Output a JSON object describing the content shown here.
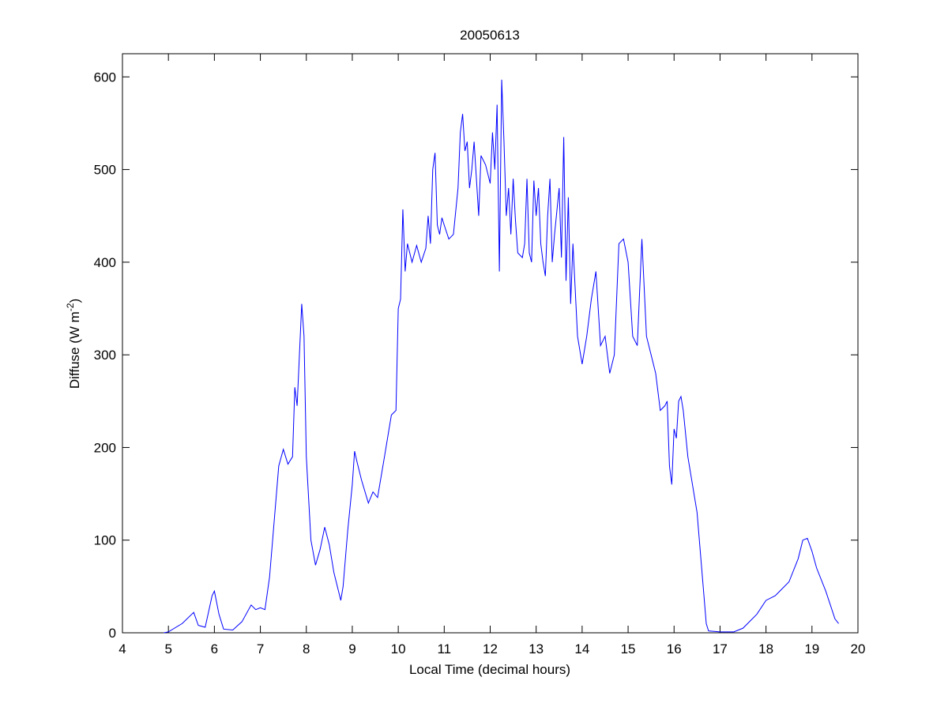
{
  "chart_data": {
    "type": "line",
    "title": "20050613",
    "x_label": "Local Time (decimal hours)",
    "y_label": [
      "Diffuse (W m",
      "-2",
      ")"
    ],
    "xlim": [
      4,
      20
    ],
    "xticks": [
      4,
      5,
      6,
      7,
      8,
      9,
      10,
      11,
      12,
      13,
      14,
      15,
      16,
      17,
      18,
      19,
      20
    ],
    "ylim": [
      0,
      625
    ],
    "yticks": [
      0,
      100,
      200,
      300,
      400,
      500,
      600
    ],
    "grid": false,
    "x": [
      4.9,
      5.0,
      5.3,
      5.55,
      5.65,
      5.8,
      5.95,
      6.0,
      6.1,
      6.2,
      6.4,
      6.6,
      6.8,
      6.9,
      7.0,
      7.1,
      7.2,
      7.3,
      7.4,
      7.5,
      7.6,
      7.7,
      7.75,
      7.8,
      7.85,
      7.9,
      7.95,
      8.0,
      8.1,
      8.2,
      8.3,
      8.4,
      8.5,
      8.6,
      8.75,
      8.8,
      8.9,
      9.0,
      9.05,
      9.1,
      9.2,
      9.35,
      9.45,
      9.55,
      9.7,
      9.85,
      9.95,
      10.0,
      10.05,
      10.1,
      10.15,
      10.2,
      10.3,
      10.4,
      10.5,
      10.6,
      10.65,
      10.7,
      10.75,
      10.8,
      10.85,
      10.9,
      10.95,
      11.0,
      11.1,
      11.2,
      11.3,
      11.35,
      11.4,
      11.45,
      11.5,
      11.55,
      11.6,
      11.65,
      11.7,
      11.75,
      11.8,
      11.9,
      12.0,
      12.05,
      12.1,
      12.15,
      12.2,
      12.25,
      12.3,
      12.35,
      12.4,
      12.45,
      12.5,
      12.55,
      12.6,
      12.7,
      12.75,
      12.8,
      12.85,
      12.9,
      12.95,
      13.0,
      13.05,
      13.1,
      13.15,
      13.2,
      13.25,
      13.3,
      13.35,
      13.4,
      13.5,
      13.55,
      13.6,
      13.65,
      13.7,
      13.75,
      13.8,
      13.9,
      14.0,
      14.1,
      14.2,
      14.3,
      14.35,
      14.4,
      14.5,
      14.6,
      14.7,
      14.8,
      14.9,
      15.0,
      15.1,
      15.2,
      15.3,
      15.4,
      15.5,
      15.6,
      15.7,
      15.8,
      15.85,
      15.9,
      15.95,
      16.0,
      16.05,
      16.1,
      16.15,
      16.2,
      16.3,
      16.4,
      16.5,
      16.6,
      16.7,
      16.75,
      17.0,
      17.3,
      17.5,
      17.8,
      18.0,
      18.2,
      18.3,
      18.5,
      18.7,
      18.8,
      18.9,
      19.0,
      19.1,
      19.3,
      19.5,
      19.58
    ],
    "series": [
      {
        "name": "Diffuse",
        "color": "#0000ff",
        "values": [
          0,
          1,
          10,
          22,
          8,
          6,
          40,
          45,
          20,
          4,
          3,
          12,
          30,
          25,
          27,
          25,
          60,
          120,
          180,
          198,
          182,
          190,
          265,
          245,
          300,
          355,
          320,
          190,
          100,
          73,
          90,
          114,
          95,
          65,
          35,
          50,
          110,
          160,
          196,
          185,
          165,
          140,
          152,
          146,
          190,
          235,
          240,
          350,
          360,
          457,
          390,
          420,
          400,
          418,
          400,
          415,
          450,
          420,
          500,
          518,
          440,
          430,
          448,
          440,
          425,
          430,
          480,
          540,
          560,
          520,
          530,
          480,
          500,
          530,
          490,
          450,
          515,
          505,
          485,
          540,
          500,
          570,
          390,
          597,
          530,
          450,
          480,
          430,
          490,
          445,
          410,
          405,
          420,
          490,
          410,
          400,
          488,
          450,
          480,
          420,
          400,
          385,
          450,
          490,
          400,
          430,
          480,
          405,
          535,
          380,
          470,
          355,
          420,
          320,
          290,
          320,
          360,
          390,
          350,
          310,
          320,
          280,
          300,
          420,
          425,
          400,
          320,
          310,
          425,
          320,
          300,
          280,
          240,
          245,
          250,
          180,
          160,
          220,
          210,
          250,
          255,
          240,
          190,
          160,
          130,
          70,
          10,
          2,
          1,
          1,
          5,
          20,
          35,
          40,
          45,
          55,
          80,
          100,
          102,
          88,
          70,
          45,
          15,
          10
        ]
      }
    ]
  }
}
